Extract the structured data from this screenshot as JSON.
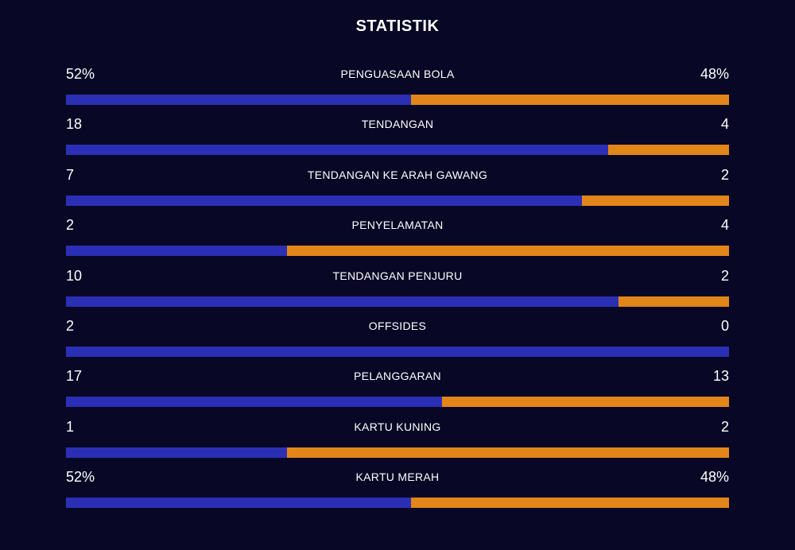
{
  "title": "STATISTIK",
  "colors": {
    "background": "#080826",
    "home_bar": "#2b2fb5",
    "away_bar": "#e3861a",
    "text": "#ffffff"
  },
  "stats": [
    {
      "label": "PENGUASAAN BOLA",
      "home": "52%",
      "away": "48%",
      "home_share": 0.52
    },
    {
      "label": "TENDANGAN",
      "home": "18",
      "away": "4",
      "home_share": 0.818
    },
    {
      "label": "TENDANGAN KE ARAH GAWANG",
      "home": "7",
      "away": "2",
      "home_share": 0.778
    },
    {
      "label": "PENYELAMATAN",
      "home": "2",
      "away": "4",
      "home_share": 0.333
    },
    {
      "label": "TENDANGAN PENJURU",
      "home": "10",
      "away": "2",
      "home_share": 0.833
    },
    {
      "label": "OFFSIDES",
      "home": "2",
      "away": "0",
      "home_share": 1.0
    },
    {
      "label": "PELANGGARAN",
      "home": "17",
      "away": "13",
      "home_share": 0.567
    },
    {
      "label": "KARTU KUNING",
      "home": "1",
      "away": "2",
      "home_share": 0.333
    },
    {
      "label": "KARTU MERAH",
      "home": "52%",
      "away": "48%",
      "home_share": 0.52
    }
  ]
}
